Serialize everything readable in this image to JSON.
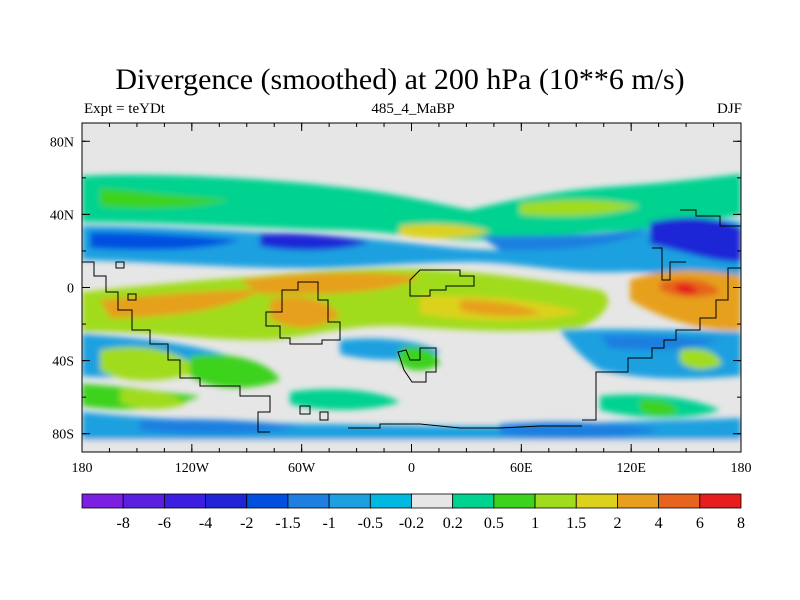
{
  "chart_data": {
    "type": "heatmap",
    "title": "Divergence (smoothed) at 200 hPa (10**6 m/s)",
    "subtitle_left": "Expt = teYDt",
    "subtitle_center": "485_4_MaBP",
    "subtitle_right": "DJF",
    "x_ticks": [
      "180",
      "120W",
      "60W",
      "0",
      "60E",
      "120E",
      "180"
    ],
    "y_ticks": [
      "80N",
      "40N",
      "0",
      "40S",
      "80S"
    ],
    "colorbar_labels": [
      "-8",
      "-6",
      "-4",
      "-2",
      "-1.5",
      "-1",
      "-0.5",
      "-0.2",
      "0.2",
      "0.5",
      "1",
      "1.5",
      "2",
      "4",
      "6",
      "8"
    ],
    "colorbar_colors": [
      "#7b1fe0",
      "#5a1fe0",
      "#3c1ee0",
      "#1f25d6",
      "#0050e0",
      "#1f7fe0",
      "#1ea0e0",
      "#00b8e0",
      "#e6e6e6",
      "#00d290",
      "#3cd21e",
      "#a0dc1e",
      "#dcd21e",
      "#e6a01e",
      "#e6641e",
      "#e61e1e"
    ],
    "xlim": [
      -180,
      180
    ],
    "ylim": [
      -90,
      90
    ]
  }
}
